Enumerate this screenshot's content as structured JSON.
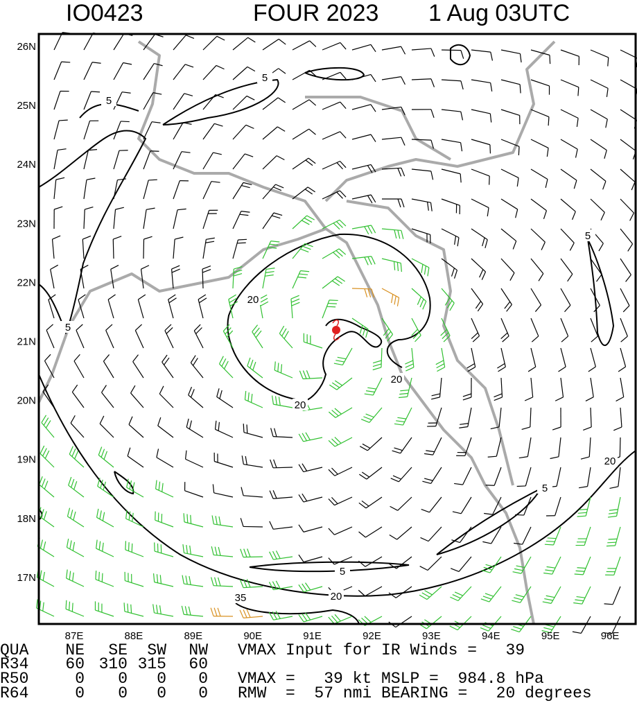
{
  "header": {
    "id": "IO0423",
    "title": "FOUR 2023",
    "time": "1 Aug 03UTC"
  },
  "map": {
    "lat_labels": [
      "26N",
      "25N",
      "24N",
      "23N",
      "22N",
      "21N",
      "20N",
      "19N",
      "18N",
      "17N"
    ],
    "lon_labels": [
      "87E",
      "88E",
      "89E",
      "90E",
      "91E",
      "92E",
      "93E",
      "94E",
      "95E",
      "96E"
    ],
    "contour_labels": [
      "5",
      "5",
      "5",
      "5",
      "5",
      "5",
      "20",
      "20",
      "20",
      "20",
      "20",
      "35"
    ]
  },
  "table": {
    "columns": [
      "QUA",
      "NE",
      "SE",
      "SW",
      "NW"
    ],
    "rows": [
      [
        "R34",
        60,
        310,
        315,
        60
      ],
      [
        "R50",
        0,
        0,
        0,
        0
      ],
      [
        "R64",
        0,
        0,
        0,
        0
      ]
    ]
  },
  "notes": [
    "VMAX Input for IR Winds =   39",
    "VMAX =   39 kt MSLP =  984.8 hPa",
    "RMW  =  57 nmi BEARING =   20 degrees"
  ]
}
